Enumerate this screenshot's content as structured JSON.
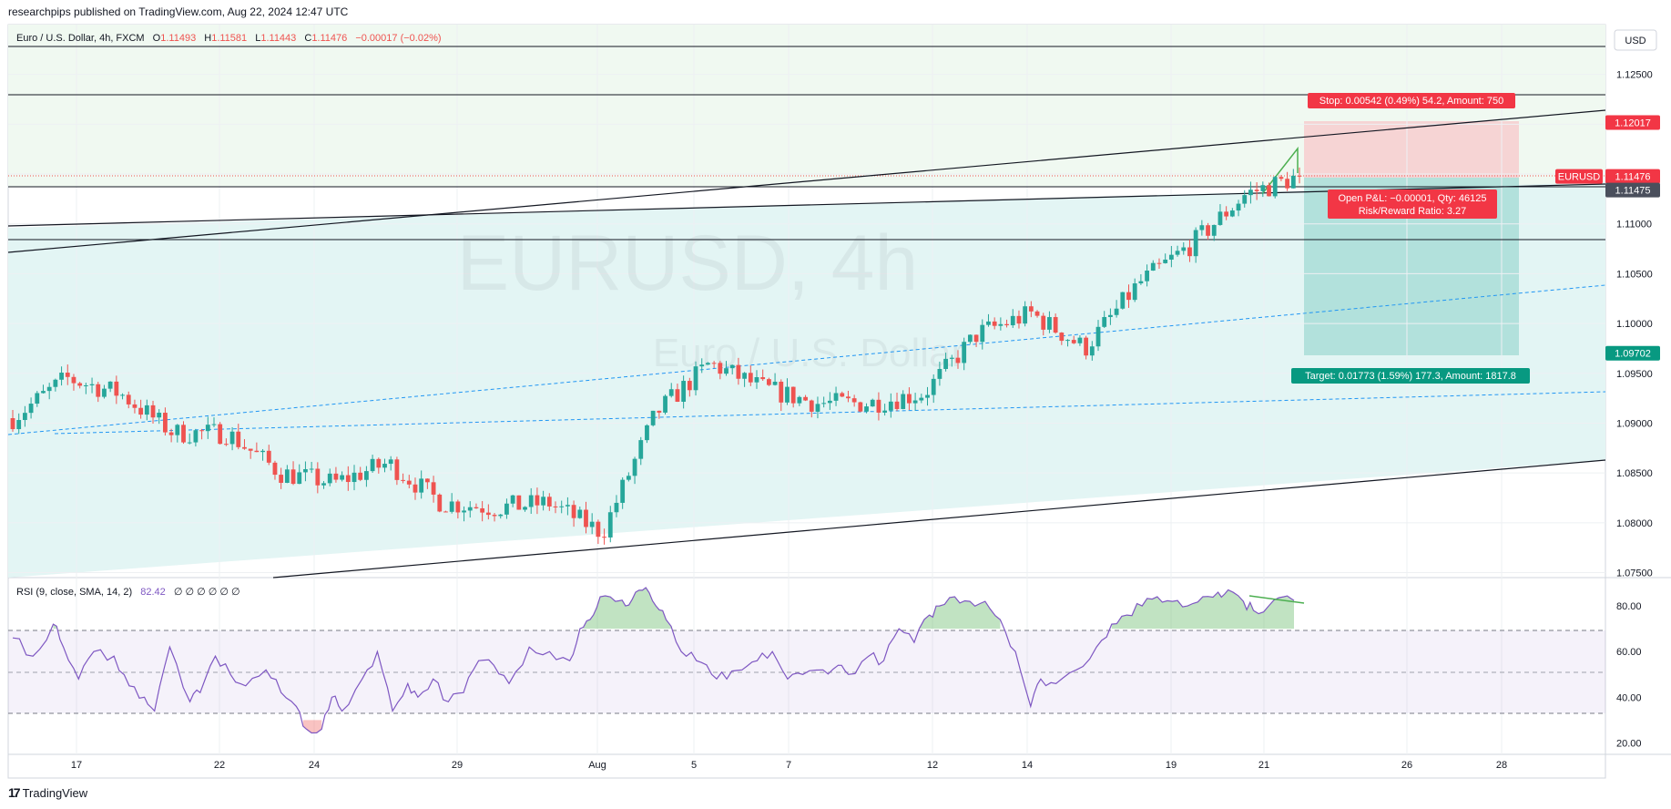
{
  "header": {
    "published": "researchpips published on TradingView.com, Aug 22, 2024 12:47 UTC"
  },
  "legend": {
    "symbol": "Euro / U.S. Dollar, 4h, FXCM",
    "o_label": "O",
    "o": "1.11493",
    "h_label": "H",
    "h": "1.11581",
    "l_label": "L",
    "l": "1.11443",
    "c_label": "C",
    "c": "1.11476",
    "change": "−0.00017 (−0.02%)"
  },
  "watermark": {
    "line1": "EURUSD, 4h",
    "line2": "Euro / U.S. Dollar"
  },
  "currency_button": "USD",
  "price_axis": {
    "ticks": [
      "1.12500",
      "1.12000",
      "1.11500",
      "1.11000",
      "1.10500",
      "1.10000",
      "1.09500",
      "1.09000",
      "1.08500",
      "1.08000",
      "1.07500"
    ],
    "badges": [
      {
        "label": "1.12017",
        "color": "#f23645"
      },
      {
        "label": "EURUSD",
        "color": "#f23645"
      },
      {
        "label": "1.11476",
        "color": "#f23645"
      },
      {
        "label": "1.11475",
        "color": "#4a4f5c"
      },
      {
        "label": "1.09702",
        "color": "#089981"
      }
    ]
  },
  "position": {
    "stop_label": "Stop: 0.00542 (0.49%) 54.2, Amount: 750",
    "pnl_label": "Open P&L: −0.00001, Qty: 46125",
    "rr_label": "Risk/Reward Ratio: 3.27",
    "target_label": "Target: 0.01773 (1.59%) 177.3, Amount: 1817.8"
  },
  "rsi": {
    "legend": "RSI (9, close, SMA, 14, 2)",
    "value": "82.42",
    "extra": "∅ ∅ ∅ ∅ ∅ ∅",
    "ticks": [
      "80.00",
      "60.00",
      "40.00",
      "20.00"
    ]
  },
  "time_axis": {
    "labels": [
      "17",
      "22",
      "24",
      "29",
      "Aug",
      "5",
      "7",
      "12",
      "14",
      "19",
      "21",
      "26",
      "28"
    ]
  },
  "footer": {
    "brand": "TradingView"
  },
  "colors": {
    "up": "#26a69a",
    "down": "#ef5350",
    "rsi_line": "#7e57c2",
    "channel_fill": "#e0f2f1",
    "stop_fill": "#f7caca",
    "target_fill": "#b2dfdb"
  },
  "chart_data": {
    "type": "candlestick",
    "title": "Euro / U.S. Dollar, 4h, FXCM",
    "ylim": [
      1.0745,
      1.13
    ],
    "close_path": [
      {
        "x": "Jul 16",
        "y": 1.0905
      },
      {
        "x": "Jul 17",
        "y": 1.0945
      },
      {
        "x": "Jul 18",
        "y": 1.093
      },
      {
        "x": "Jul 19",
        "y": 1.089
      },
      {
        "x": "Jul 22",
        "y": 1.089
      },
      {
        "x": "Jul 23",
        "y": 1.085
      },
      {
        "x": "Jul 24",
        "y": 1.084
      },
      {
        "x": "Jul 26",
        "y": 1.086
      },
      {
        "x": "Jul 29",
        "y": 1.082
      },
      {
        "x": "Jul 30",
        "y": 1.0815
      },
      {
        "x": "Jul 31",
        "y": 1.082
      },
      {
        "x": "Aug 1",
        "y": 1.079
      },
      {
        "x": "Aug 2",
        "y": 1.091
      },
      {
        "x": "Aug 5",
        "y": 1.096
      },
      {
        "x": "Aug 6",
        "y": 1.0935
      },
      {
        "x": "Aug 7",
        "y": 1.092
      },
      {
        "x": "Aug 8",
        "y": 1.092
      },
      {
        "x": "Aug 12",
        "y": 1.093
      },
      {
        "x": "Aug 13",
        "y": 1.099
      },
      {
        "x": "Aug 14",
        "y": 1.101
      },
      {
        "x": "Aug 16",
        "y": 1.0975
      },
      {
        "x": "Aug 19",
        "y": 1.104
      },
      {
        "x": "Aug 20",
        "y": 1.108
      },
      {
        "x": "Aug 21",
        "y": 1.113
      },
      {
        "x": "Aug 22",
        "y": 1.11476
      }
    ],
    "levels": {
      "current": 1.11476,
      "stop": 1.12017,
      "target": 1.09702,
      "hline1": 1.128,
      "hline2": 1.1232,
      "hline3": 1.1085
    },
    "rsi_ylim": [
      15,
      90
    ],
    "rsi_bands": [
      70,
      50,
      30
    ],
    "rsi_last": 82.42
  }
}
